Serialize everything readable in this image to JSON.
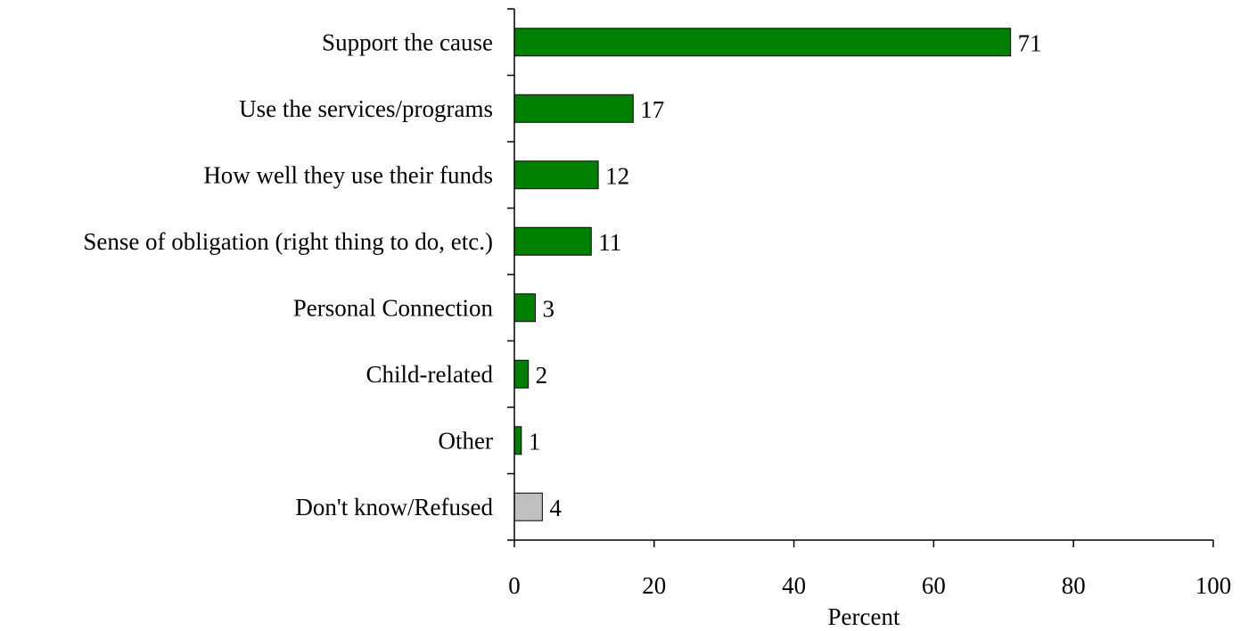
{
  "chart_data": {
    "type": "bar",
    "orientation": "horizontal",
    "categories": [
      "Support the cause",
      "Use the services/programs",
      "How well they use their funds",
      "Sense of obligation (right thing to do, etc.)",
      "Personal Connection",
      "Child-related",
      "Other",
      "Don't know/Refused"
    ],
    "values": [
      71,
      17,
      12,
      11,
      3,
      2,
      1,
      4
    ],
    "bar_colors": [
      "#008000",
      "#008000",
      "#008000",
      "#008000",
      "#008000",
      "#008000",
      "#008000",
      "#c0c0c0"
    ],
    "xlabel": "Percent",
    "ylabel": "",
    "xlim": [
      0,
      100
    ],
    "xticks": [
      0,
      20,
      40,
      60,
      80,
      100
    ],
    "grid": false,
    "legend": "none"
  }
}
